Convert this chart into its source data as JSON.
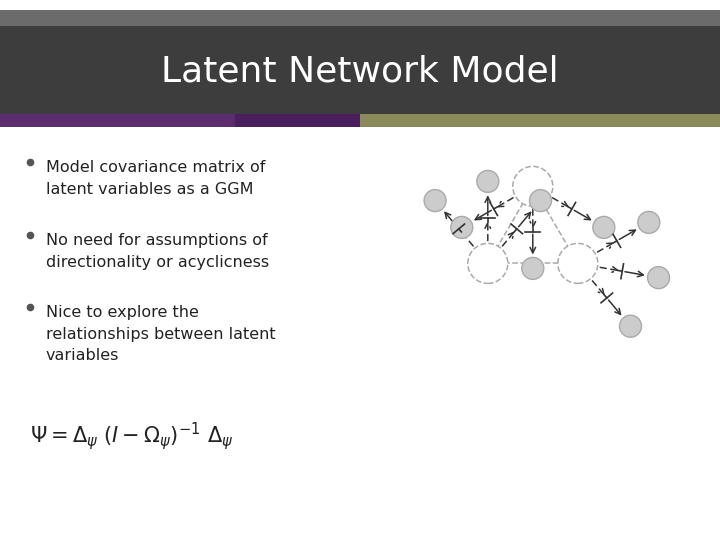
{
  "title": "Latent Network Model",
  "title_bg": "#3d3d3d",
  "title_color": "#ffffff",
  "title_bar_top_color": "#6b6b6b",
  "accent_left_color": "#5c2d6e",
  "accent_mid_color": "#4a1f5e",
  "accent_right_color": "#8b8b5a",
  "bg_color": "#ffffff",
  "bullet_color": "#555555",
  "text_color": "#222222",
  "bullets": [
    "Model covariance matrix of\nlatent variables as a GGM",
    "No need for assumptions of\ndirectionality or acyclicness",
    "Nice to explore the\nrelationships between latent\nvariables"
  ],
  "node_color": "#ffffff",
  "node_edge_color": "#999999",
  "leaf_color": "#cccccc",
  "arrow_color": "#333333"
}
